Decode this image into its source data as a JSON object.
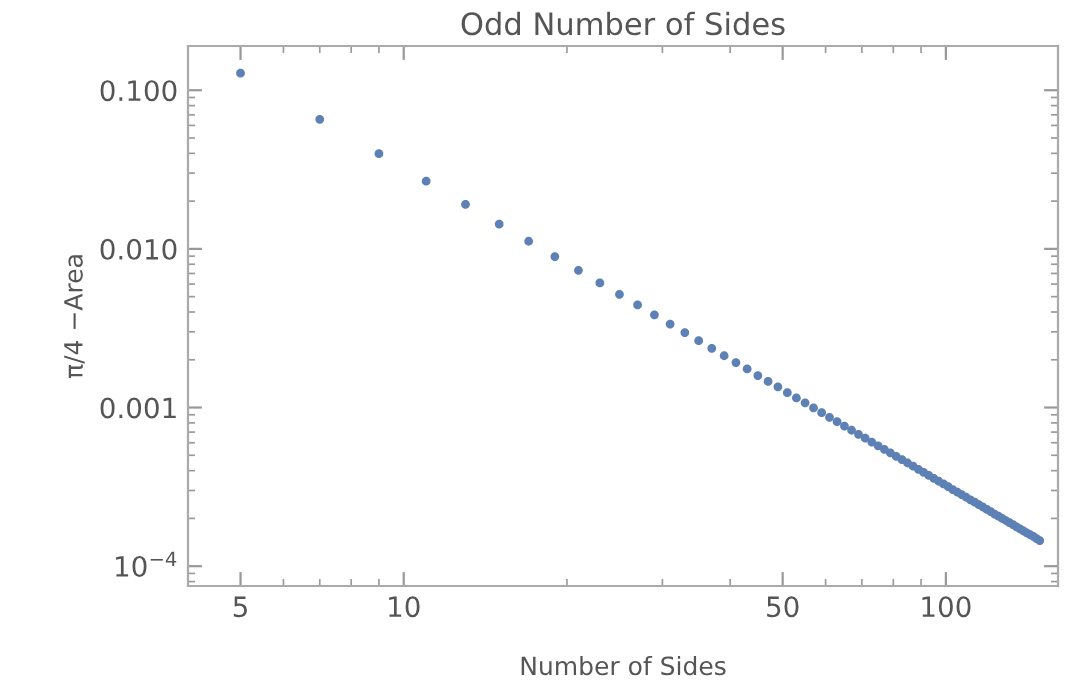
{
  "chart_data": {
    "type": "scatter",
    "title": "Odd Number of Sides",
    "xlabel": "Number of Sides",
    "ylabel": "π/4 −Area",
    "log": "xy",
    "marker": "circle",
    "grid": false,
    "xlim": [
      4,
      161
    ],
    "xticks": [
      5,
      10,
      50,
      100
    ],
    "ylim": [
      7.5e-05,
      0.19
    ],
    "yticks": [
      {
        "value": 0.1,
        "label": "0.100"
      },
      {
        "value": 0.01,
        "label": "0.010"
      },
      {
        "value": 0.001,
        "label": "0.001"
      },
      {
        "value": 0.0001,
        "label": "10$^{−4}$"
      }
    ],
    "series": [
      {
        "color": "#5e81b5",
        "x": [
          5,
          7,
          9,
          11,
          13,
          15,
          17,
          19,
          21,
          23,
          25,
          27,
          29,
          31,
          33,
          35,
          37,
          39,
          41,
          43,
          45,
          47,
          49,
          51,
          53,
          55,
          57,
          59,
          61,
          63,
          65,
          67,
          69,
          71,
          73,
          75,
          77,
          79,
          81,
          83,
          85,
          87,
          89,
          91,
          93,
          95,
          97,
          99,
          101,
          103,
          105,
          107,
          109,
          111,
          113,
          115,
          117,
          119,
          121,
          123,
          125,
          127,
          129,
          131,
          133,
          135,
          137,
          139,
          141,
          143,
          145,
          147,
          149
        ],
        "values": [
          0.128,
          0.0656,
          0.0398,
          0.0267,
          0.0191,
          0.01434,
          0.01117,
          0.00894,
          0.00732,
          0.0061,
          0.00517,
          0.00443,
          0.00384,
          0.00336,
          0.00297,
          0.00264,
          0.00236,
          0.00212,
          0.00192,
          0.00175,
          0.00159,
          0.00146,
          0.00135,
          0.00124,
          0.00115,
          0.00107,
          0.000994,
          0.000928,
          0.000868,
          0.000814,
          0.000764,
          0.000719,
          0.000678,
          0.000641,
          0.000606,
          0.000574,
          0.000545,
          0.000518,
          0.000492,
          0.000469,
          0.000447,
          0.000427,
          0.000408,
          0.00039,
          0.000373,
          0.000358,
          0.000343,
          0.00033,
          0.000317,
          0.000304,
          0.000293,
          0.000282,
          0.000272,
          0.000262,
          0.000253,
          0.000244,
          0.000236,
          0.000228,
          0.000221,
          0.000213,
          0.000207,
          0.0002,
          0.000194,
          0.000188,
          0.000183,
          0.000177,
          0.000172,
          0.000167,
          0.000162,
          0.000158,
          0.000154,
          0.000149,
          0.000145
        ]
      }
    ]
  }
}
